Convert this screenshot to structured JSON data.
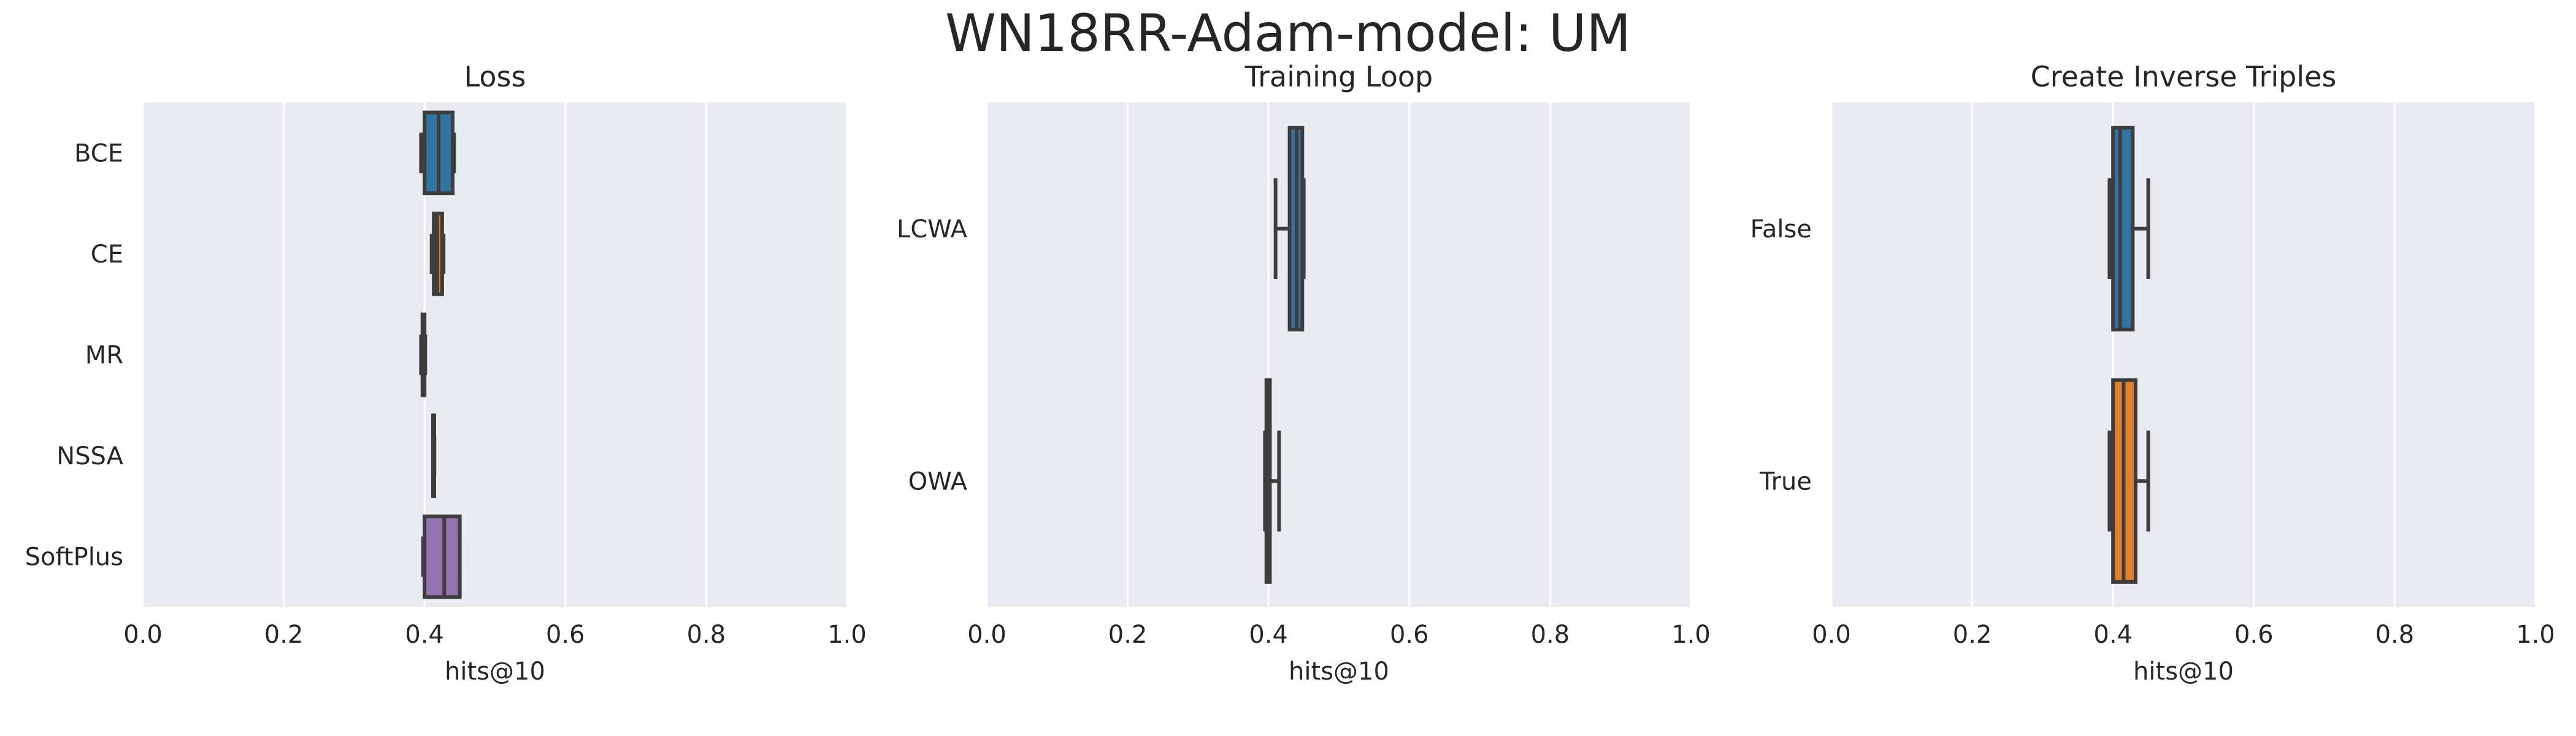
{
  "figure_title": "WN18RR-Adam-model: UM",
  "style": {
    "panel_bg": "#eaeaf2",
    "grid": "#ffffff",
    "edge": "#3d3d3d",
    "text": "#262626"
  },
  "chart_data": [
    {
      "type": "boxplot",
      "orientation": "horizontal",
      "title": "Loss",
      "xlabel": "hits@10",
      "xlim": [
        0.0,
        1.0
      ],
      "xticks": [
        "0.0",
        "0.2",
        "0.4",
        "0.6",
        "0.8",
        "1.0"
      ],
      "grid": true,
      "categories": [
        "BCE",
        "CE",
        "MR",
        "NSSA",
        "SoftPlus"
      ],
      "boxes": [
        {
          "category": "BCE",
          "whisker_low": 0.395,
          "q1": 0.4,
          "median": 0.42,
          "q3": 0.44,
          "whisker_high": 0.442,
          "color": "#3274a1"
        },
        {
          "category": "CE",
          "whisker_low": 0.41,
          "q1": 0.413,
          "median": 0.418,
          "q3": 0.425,
          "whisker_high": 0.427,
          "color": "#e1812c"
        },
        {
          "category": "MR",
          "whisker_low": 0.395,
          "q1": 0.397,
          "median": 0.398,
          "q3": 0.4,
          "whisker_high": 0.401,
          "color": "#3a923a"
        },
        {
          "category": "NSSA",
          "whisker_low": 0.412,
          "q1": 0.412,
          "median": 0.413,
          "q3": 0.413,
          "whisker_high": 0.414,
          "color": "#c03d3e"
        },
        {
          "category": "SoftPlus",
          "whisker_low": 0.398,
          "q1": 0.4,
          "median": 0.428,
          "q3": 0.45,
          "whisker_high": 0.45,
          "color": "#9372b2"
        }
      ]
    },
    {
      "type": "boxplot",
      "orientation": "horizontal",
      "title": "Training Loop",
      "xlabel": "hits@10",
      "xlim": [
        0.0,
        1.0
      ],
      "xticks": [
        "0.0",
        "0.2",
        "0.4",
        "0.6",
        "0.8",
        "1.0"
      ],
      "grid": true,
      "categories": [
        "LCWA",
        "OWA"
      ],
      "boxes": [
        {
          "category": "LCWA",
          "whisker_low": 0.41,
          "q1": 0.43,
          "median": 0.44,
          "q3": 0.448,
          "whisker_high": 0.45,
          "color": "#3274a1"
        },
        {
          "category": "OWA",
          "whisker_low": 0.395,
          "q1": 0.397,
          "median": 0.4,
          "q3": 0.402,
          "whisker_high": 0.415,
          "color": "#e1812c"
        }
      ]
    },
    {
      "type": "boxplot",
      "orientation": "horizontal",
      "title": "Create Inverse Triples",
      "xlabel": "hits@10",
      "xlim": [
        0.0,
        1.0
      ],
      "xticks": [
        "0.0",
        "0.2",
        "0.4",
        "0.6",
        "0.8",
        "1.0"
      ],
      "grid": true,
      "categories": [
        "False",
        "True"
      ],
      "boxes": [
        {
          "category": "False",
          "whisker_low": 0.395,
          "q1": 0.4,
          "median": 0.41,
          "q3": 0.428,
          "whisker_high": 0.45,
          "color": "#3274a1"
        },
        {
          "category": "True",
          "whisker_low": 0.395,
          "q1": 0.4,
          "median": 0.415,
          "q3": 0.432,
          "whisker_high": 0.45,
          "color": "#e1812c"
        }
      ]
    }
  ]
}
